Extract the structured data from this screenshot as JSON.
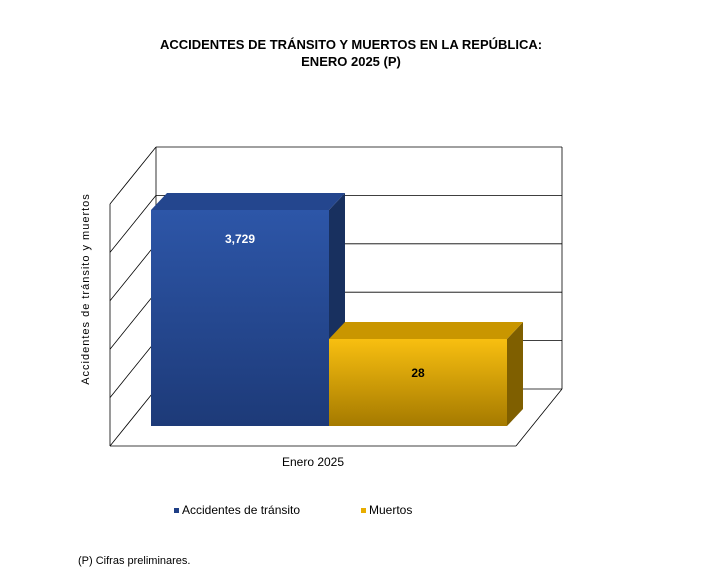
{
  "chart_data": {
    "type": "bar",
    "title": "ACCIDENTES DE TRÁNSITO Y MUERTOS EN LA REPÚBLICA:",
    "subtitle": "ENERO 2025 (P)",
    "ylabel": "Accidentes de tránsito y muertos",
    "xlabel": "",
    "categories": [
      "Enero 2025"
    ],
    "series": [
      {
        "name": "Accidentes de tránsito",
        "values": [
          3729
        ],
        "label": "3,729",
        "color": "#2a4f9c"
      },
      {
        "name": "Muertos",
        "values": [
          28
        ],
        "label": "28",
        "color": "#e8ad00"
      }
    ],
    "legend_position": "bottom",
    "grid": true
  },
  "footnote": "(P) Cifras  preliminares."
}
